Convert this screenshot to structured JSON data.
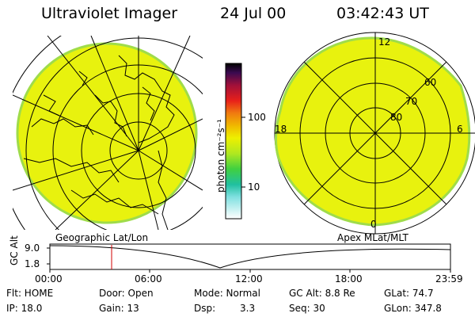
{
  "header": {
    "title": "Ultraviolet Imager",
    "date": "24 Jul 00",
    "time": "03:42:43 UT"
  },
  "colorbar": {
    "unit_label": "photon cm⁻²s⁻¹",
    "ticks": [
      "100",
      "10"
    ]
  },
  "left_panel": {
    "caption": "Geographic Lat/Lon"
  },
  "right_panel": {
    "caption": "Apex MLat/MLT",
    "clock_labels": [
      "12",
      "18",
      "6",
      "0"
    ],
    "lat_labels": [
      "60",
      "70",
      "80"
    ]
  },
  "altitude_plot": {
    "ylabel": "GC Alt",
    "yticks": [
      "9.0",
      "1.8"
    ],
    "xticks": [
      "00:00",
      "06:00",
      "12:00",
      "18:00",
      "23:59"
    ],
    "marker_time": "03:42"
  },
  "info": {
    "flt": "Flt: HOME",
    "ip": "IP: 18.0",
    "door": "Door: Open",
    "gain": "Gain: 13",
    "mode": "Mode: Normal",
    "dsp_label": "Dsp:",
    "dsp_value": "3.3",
    "gc_alt": "GC Alt: 8.8 Re",
    "seq": "Seq: 30",
    "glat": "GLat: 74.7",
    "glon": "GLon: 347.8"
  },
  "colors": {
    "aurora_fill": "#e8f20e",
    "aurora_edge": "#9fdc4a",
    "marker": "#d00000"
  }
}
